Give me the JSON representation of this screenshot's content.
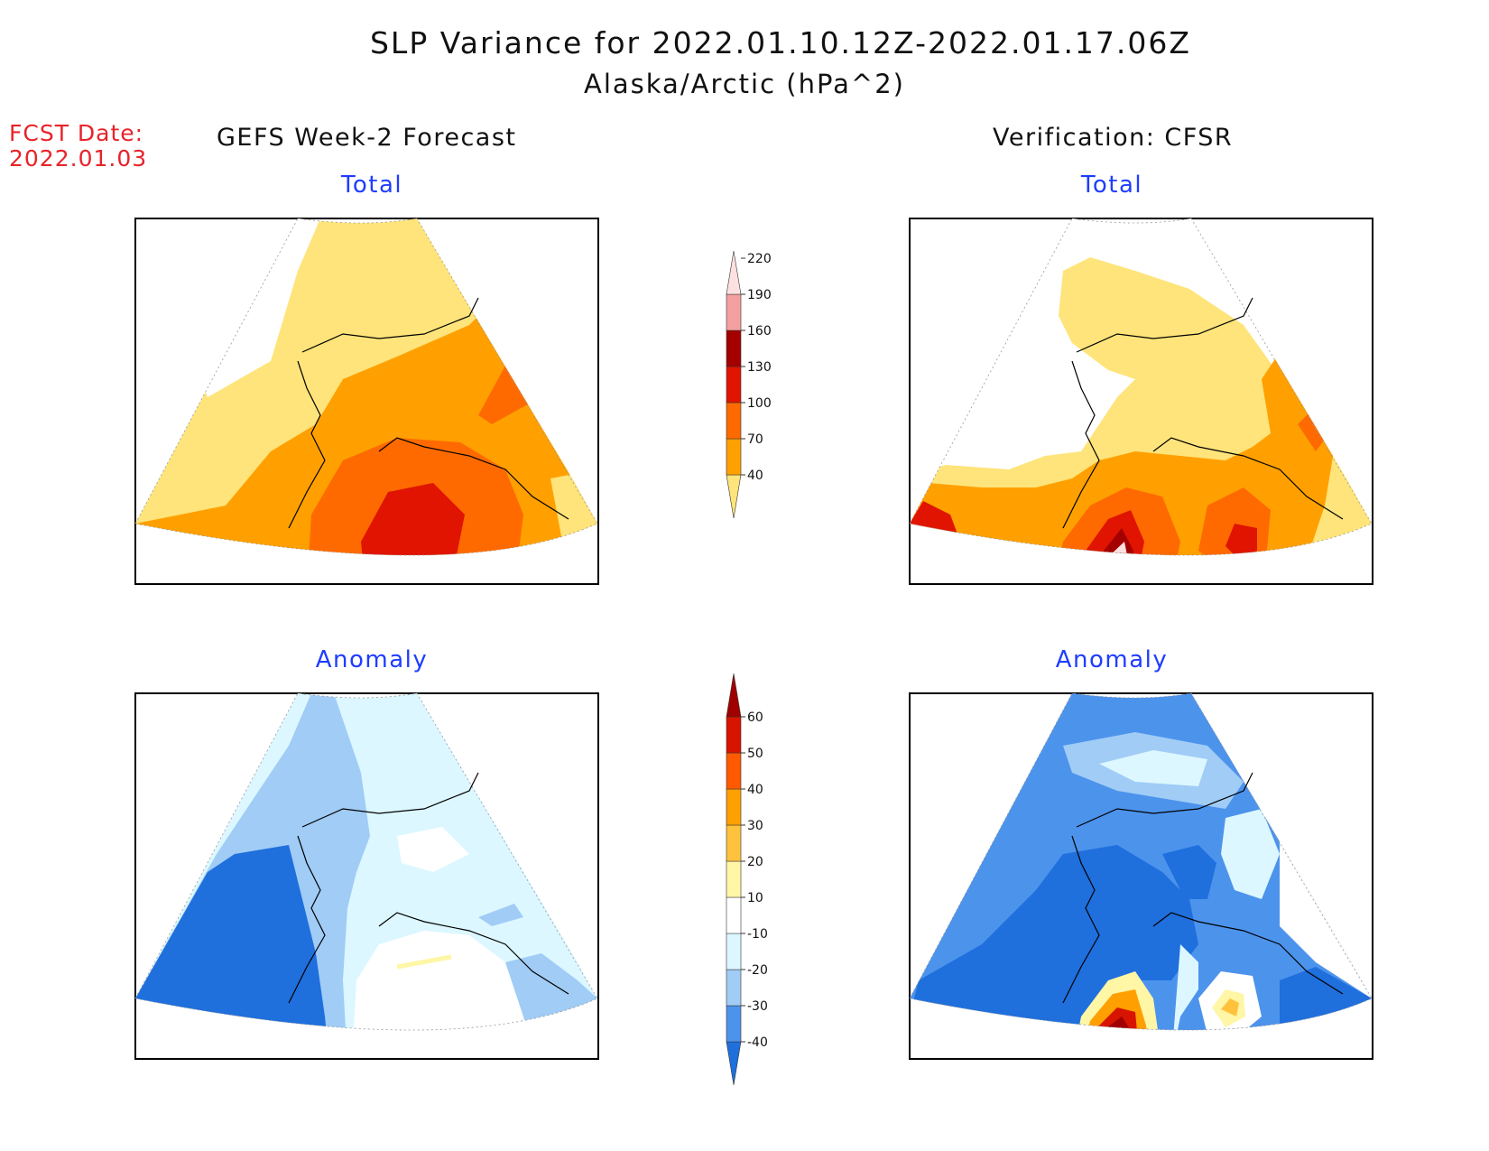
{
  "title": "SLP Variance for 2022.01.10.12Z-2022.01.17.06Z",
  "subtitle": "Alaska/Arctic (hPa^2)",
  "fcst": {
    "label": "FCST Date:",
    "date": "2022.01.03"
  },
  "columns": {
    "forecast": "GEFS Week-2 Forecast",
    "verification": "Verification: CFSR"
  },
  "panels": {
    "forecast_total": "Total",
    "verification_total": "Total",
    "forecast_anomaly": "Anomaly",
    "verification_anomaly": "Anomaly"
  },
  "total_colorbar": {
    "levels": [
      "40",
      "70",
      "100",
      "130",
      "160",
      "190",
      "220"
    ],
    "colors": [
      "#fee47a",
      "#ffa000",
      "#ff6a00",
      "#e01400",
      "#a50000",
      "#f4a0a0",
      "#fde1e1"
    ]
  },
  "anomaly_colorbar": {
    "levels": [
      "-40",
      "-30",
      "-20",
      "-10",
      "10",
      "20",
      "30",
      "40",
      "50",
      "60"
    ],
    "colors": [
      "#1f6fdd",
      "#4c93ec",
      "#a0ccf6",
      "#dcf7ff",
      "#ffffff",
      "#fff6a6",
      "#ffc23c",
      "#ff9f00",
      "#ff5a00",
      "#d71400",
      "#a00000"
    ]
  }
}
